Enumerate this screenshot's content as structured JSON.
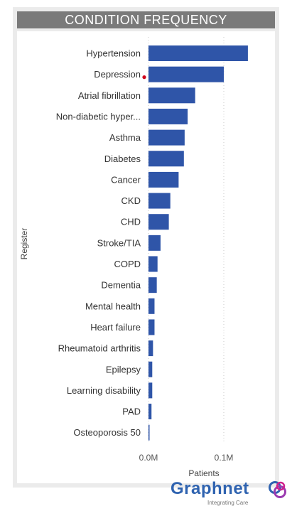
{
  "title": "CONDITION FREQUENCY",
  "logo": {
    "name": "Graphnet",
    "tagline": "Integrating Care"
  },
  "accent_color": "#2f55a8",
  "chart_data": {
    "type": "bar",
    "orientation": "horizontal",
    "categories": [
      "Hypertension",
      "Depression",
      "Atrial fibrillation",
      "Non-diabetic hyper...",
      "Asthma",
      "Diabetes",
      "Cancer",
      "CKD",
      "CHD",
      "Stroke/TIA",
      "COPD",
      "Dementia",
      "Mental health",
      "Heart failure",
      "Rheumatoid arthritis",
      "Epilepsy",
      "Learning disability",
      "PAD",
      "Osteoporosis 50"
    ],
    "values": [
      0.132,
      0.1,
      0.062,
      0.052,
      0.048,
      0.047,
      0.04,
      0.029,
      0.027,
      0.016,
      0.012,
      0.011,
      0.008,
      0.008,
      0.006,
      0.005,
      0.005,
      0.004,
      0.001
    ],
    "xlabel": "Patients",
    "ylabel": "Register",
    "xlim": [
      0,
      0.15
    ],
    "xticks": [
      0,
      0.1
    ],
    "xtick_labels": [
      "0.0M",
      "0.1M"
    ],
    "grid": "vertical dotted",
    "bar_color": "#2f55a8",
    "annotation_color": "#d0021b"
  }
}
